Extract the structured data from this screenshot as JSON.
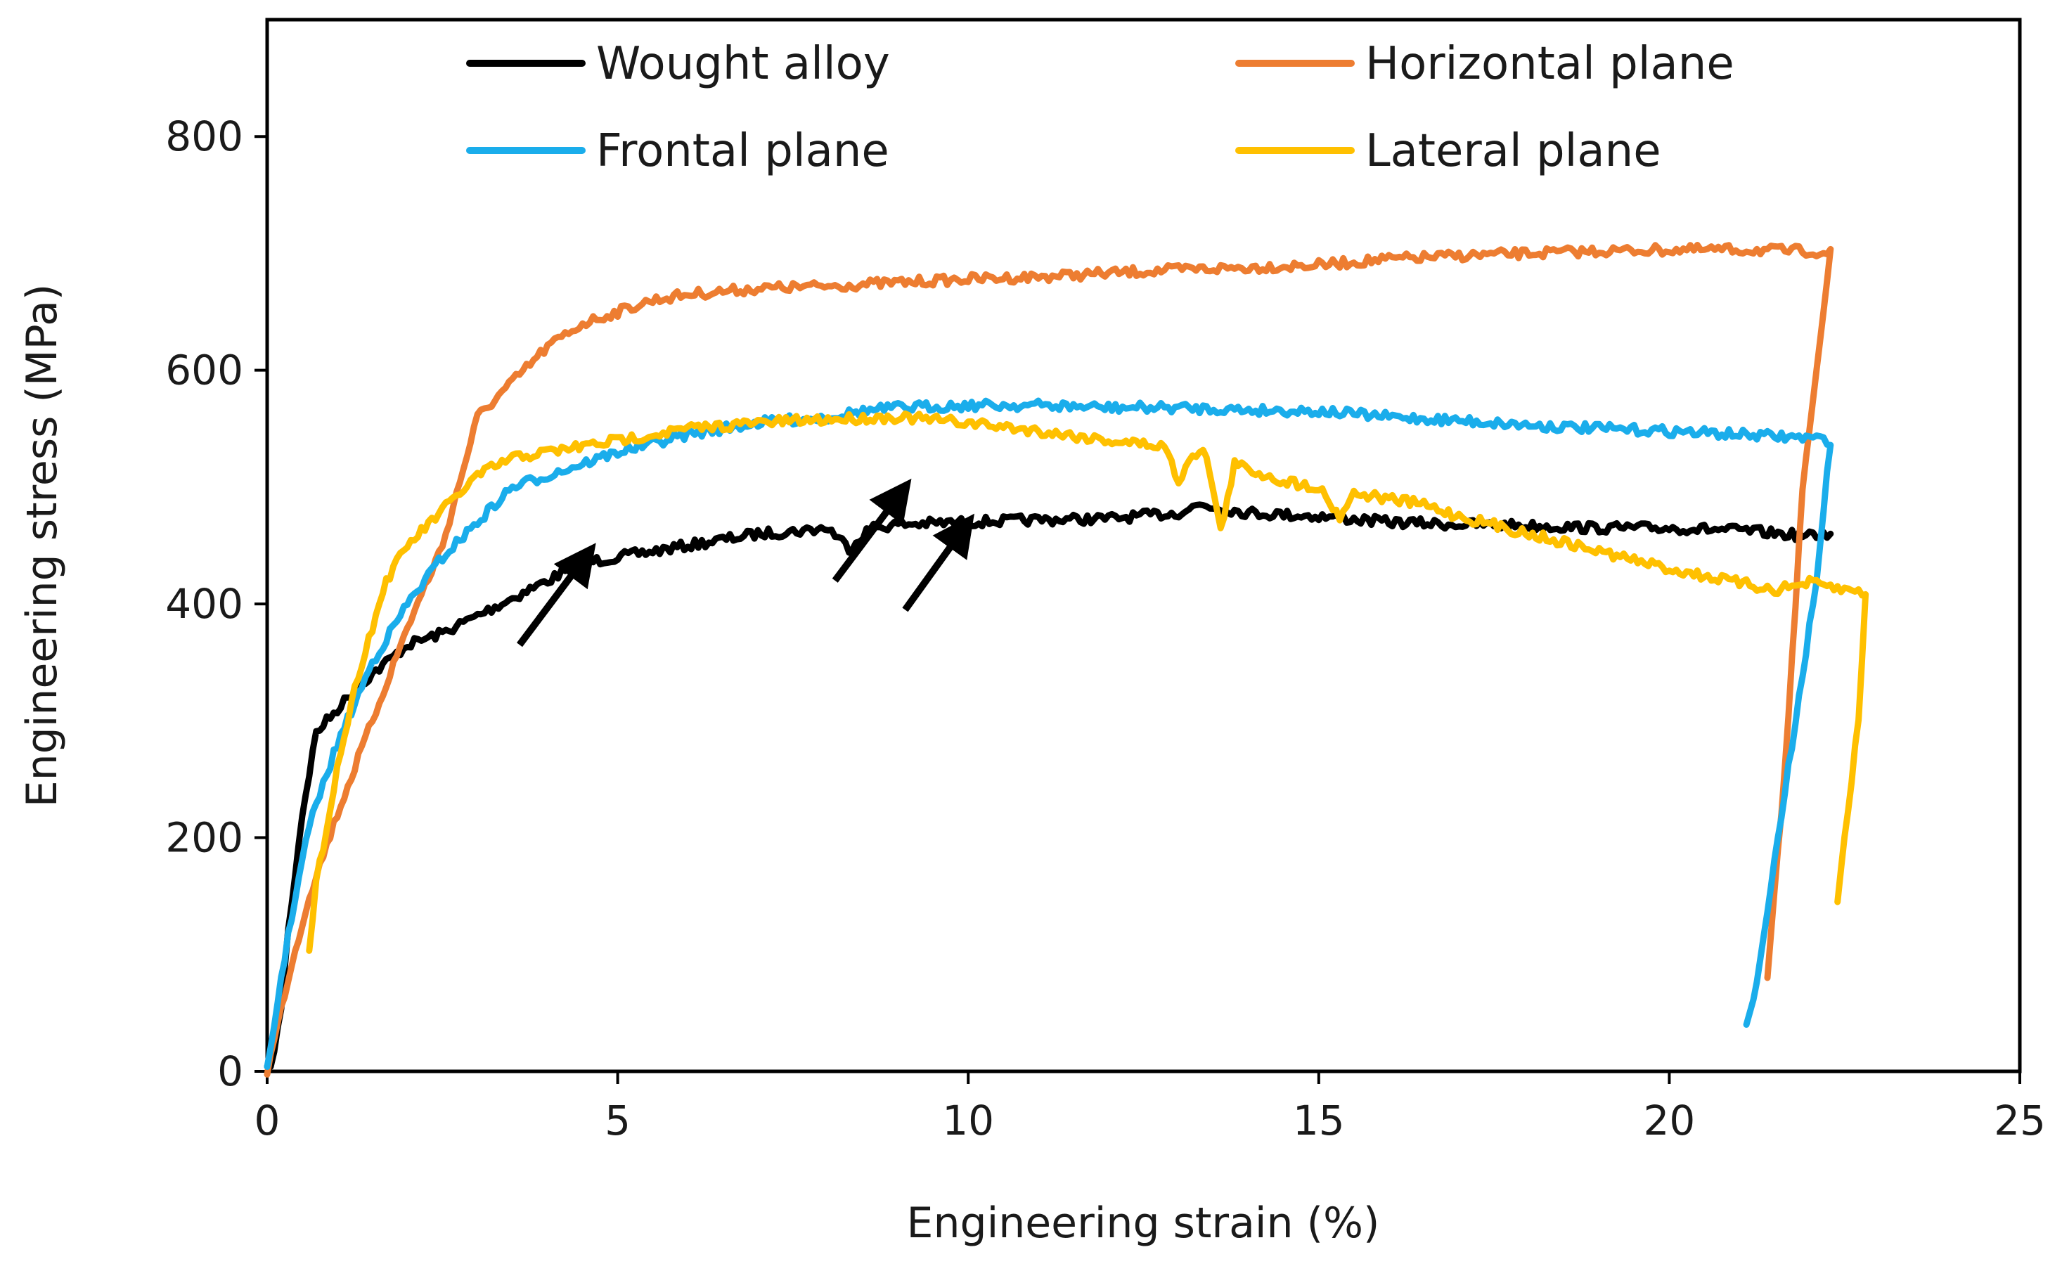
{
  "chart_data": {
    "type": "line",
    "title": "",
    "xlabel": "Engineering strain (%)",
    "ylabel": "Engineering stress (MPa)",
    "xlim": [
      0,
      25
    ],
    "ylim": [
      0,
      900
    ],
    "xticks": [
      0,
      5,
      10,
      15,
      20,
      25
    ],
    "yticks": [
      0,
      200,
      400,
      600,
      800
    ],
    "grid": false,
    "legend_position": "top",
    "series": [
      {
        "name": "Wought alloy",
        "color": "#000000",
        "points": [
          [
            0,
            0
          ],
          [
            0.1,
            15
          ],
          [
            0.2,
            55
          ],
          [
            0.3,
            120
          ],
          [
            0.5,
            220
          ],
          [
            0.7,
            290
          ],
          [
            1.0,
            310
          ],
          [
            1.3,
            330
          ],
          [
            1.7,
            350
          ],
          [
            2.0,
            365
          ],
          [
            2.5,
            375
          ],
          [
            3.0,
            390
          ],
          [
            3.5,
            405
          ],
          [
            4.0,
            420
          ],
          [
            4.5,
            435
          ],
          [
            5.0,
            440
          ],
          [
            5.5,
            445
          ],
          [
            6.0,
            450
          ],
          [
            6.5,
            455
          ],
          [
            7.0,
            460
          ],
          [
            7.5,
            462
          ],
          [
            8.0,
            465
          ],
          [
            8.3,
            448
          ],
          [
            8.6,
            465
          ],
          [
            9.0,
            468
          ],
          [
            10,
            470
          ],
          [
            11,
            472
          ],
          [
            12,
            473
          ],
          [
            13,
            478
          ],
          [
            13.3,
            485
          ],
          [
            13.6,
            482
          ],
          [
            14,
            478
          ],
          [
            15,
            475
          ],
          [
            16,
            470
          ],
          [
            17,
            468
          ],
          [
            18,
            467
          ],
          [
            19,
            465
          ],
          [
            20,
            465
          ],
          [
            21,
            463
          ],
          [
            22,
            458
          ],
          [
            22.3,
            460
          ]
        ]
      },
      {
        "name": "Horizontal plane",
        "color": "#ED7D31",
        "points": [
          [
            0,
            0
          ],
          [
            0.3,
            80
          ],
          [
            0.6,
            150
          ],
          [
            1.0,
            220
          ],
          [
            1.5,
            300
          ],
          [
            2.0,
            380
          ],
          [
            2.5,
            450
          ],
          [
            3.0,
            560
          ],
          [
            3.5,
            590
          ],
          [
            4.0,
            620
          ],
          [
            4.5,
            640
          ],
          [
            5.0,
            650
          ],
          [
            5.5,
            660
          ],
          [
            6.0,
            665
          ],
          [
            7.0,
            670
          ],
          [
            8.0,
            672
          ],
          [
            9.0,
            675
          ],
          [
            10,
            678
          ],
          [
            11,
            680
          ],
          [
            12,
            683
          ],
          [
            13,
            686
          ],
          [
            14,
            688
          ],
          [
            15,
            690
          ],
          [
            16,
            695
          ],
          [
            17,
            698
          ],
          [
            18,
            700
          ],
          [
            19,
            702
          ],
          [
            20,
            703
          ],
          [
            21,
            703
          ],
          [
            22,
            702
          ],
          [
            22.3,
            700
          ],
          [
            21.9,
            500
          ],
          [
            21.7,
            300
          ],
          [
            21.5,
            150
          ],
          [
            21.4,
            80
          ]
        ]
      },
      {
        "name": "Frontal plane",
        "color": "#1AADEB",
        "points": [
          [
            0,
            0
          ],
          [
            0.2,
            80
          ],
          [
            0.4,
            150
          ],
          [
            0.6,
            210
          ],
          [
            1.0,
            280
          ],
          [
            1.5,
            350
          ],
          [
            2.0,
            400
          ],
          [
            2.5,
            440
          ],
          [
            3.0,
            470
          ],
          [
            3.5,
            500
          ],
          [
            4.0,
            510
          ],
          [
            5.0,
            530
          ],
          [
            6.0,
            545
          ],
          [
            7.0,
            555
          ],
          [
            8.0,
            560
          ],
          [
            8.5,
            565
          ],
          [
            9.0,
            568
          ],
          [
            10,
            570
          ],
          [
            11,
            570
          ],
          [
            12,
            568
          ],
          [
            13,
            568
          ],
          [
            14,
            566
          ],
          [
            15,
            565
          ],
          [
            16,
            560
          ],
          [
            17,
            557
          ],
          [
            18,
            553
          ],
          [
            19,
            550
          ],
          [
            20,
            548
          ],
          [
            21,
            545
          ],
          [
            22,
            542
          ],
          [
            22.3,
            540
          ],
          [
            22.1,
            420
          ],
          [
            21.8,
            300
          ],
          [
            21.5,
            180
          ],
          [
            21.2,
            60
          ],
          [
            21.1,
            40
          ]
        ]
      },
      {
        "name": "Lateral plane",
        "color": "#FFC000",
        "points": [
          [
            0.6,
            100
          ],
          [
            0.7,
            160
          ],
          [
            1.0,
            260
          ],
          [
            1.3,
            340
          ],
          [
            1.7,
            420
          ],
          [
            2.0,
            450
          ],
          [
            2.5,
            480
          ],
          [
            3.0,
            510
          ],
          [
            3.5,
            525
          ],
          [
            4.0,
            530
          ],
          [
            5.0,
            540
          ],
          [
            6.0,
            550
          ],
          [
            7.0,
            555
          ],
          [
            8.0,
            558
          ],
          [
            9.0,
            560
          ],
          [
            10,
            555
          ],
          [
            11,
            548
          ],
          [
            12,
            540
          ],
          [
            12.8,
            535
          ],
          [
            13.0,
            505
          ],
          [
            13.2,
            530
          ],
          [
            13.4,
            528
          ],
          [
            13.6,
            462
          ],
          [
            13.8,
            520
          ],
          [
            14,
            515
          ],
          [
            14.5,
            505
          ],
          [
            15,
            500
          ],
          [
            15.3,
            475
          ],
          [
            15.5,
            495
          ],
          [
            16,
            490
          ],
          [
            16.5,
            485
          ],
          [
            17,
            475
          ],
          [
            18,
            460
          ],
          [
            19,
            445
          ],
          [
            20,
            430
          ],
          [
            21,
            418
          ],
          [
            21.5,
            412
          ],
          [
            22,
            418
          ],
          [
            22.5,
            412
          ],
          [
            22.8,
            410
          ],
          [
            22.7,
            300
          ],
          [
            22.5,
            200
          ],
          [
            22.4,
            145
          ]
        ]
      }
    ],
    "annotations": [
      {
        "type": "arrow",
        "from": [
          3.6,
          365
        ],
        "to": [
          4.6,
          445
        ]
      },
      {
        "type": "arrow",
        "from": [
          8.1,
          420
        ],
        "to": [
          9.1,
          500
        ]
      },
      {
        "type": "arrow",
        "from": [
          9.1,
          395
        ],
        "to": [
          10.0,
          470
        ]
      }
    ]
  }
}
